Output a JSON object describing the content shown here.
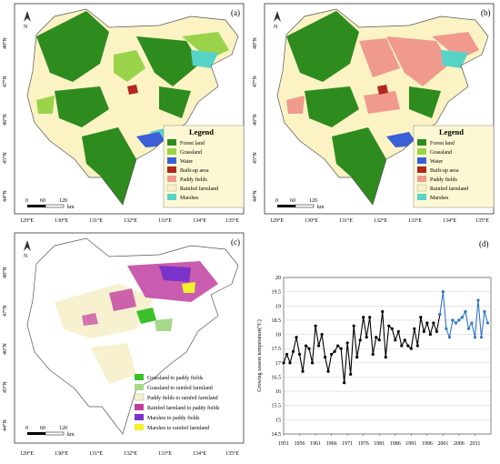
{
  "panels": {
    "a": {
      "label": "(a)"
    },
    "b": {
      "label": "(b)"
    },
    "c": {
      "label": "(c)"
    },
    "d": {
      "label": "(d)"
    }
  },
  "legend": {
    "title": "Legend",
    "items": [
      {
        "label": "Forest land",
        "color": "#2e8b1e"
      },
      {
        "label": "Grassland",
        "color": "#9ad34a"
      },
      {
        "label": "Water",
        "color": "#3b5fd6"
      },
      {
        "label": "Built-up area",
        "color": "#b3261e"
      },
      {
        "label": "Paddy fields",
        "color": "#f09a8e"
      },
      {
        "label": "Rainfed farmland",
        "color": "#fbf3c4"
      },
      {
        "label": "Marshes",
        "color": "#58d3c8"
      }
    ]
  },
  "change_legend": {
    "items": [
      {
        "label": "Grassland to paddy fields",
        "color": "#3bbf2a"
      },
      {
        "label": "Grassland to rainfed farmland",
        "color": "#a6d88a"
      },
      {
        "label": "Paddy fields to rainfed farmland",
        "color": "#f7f1cf"
      },
      {
        "label": "Rainfed farmland to paddy fields",
        "color": "#c03fa0"
      },
      {
        "label": "Marshes to paddy fields",
        "color": "#7a33c9"
      },
      {
        "label": "Marshes to rainfed farmland",
        "color": "#f1f02a"
      }
    ]
  },
  "scalebar": {
    "ticks": [
      "0",
      "60",
      "120"
    ],
    "unit": "km"
  },
  "axes": {
    "lon_ticks": [
      "129°E",
      "130°E",
      "131°E",
      "132°E",
      "133°E",
      "134°E",
      "135°E"
    ],
    "lat_ticks": [
      "48°N",
      "47°N",
      "46°N",
      "45°N",
      "44°N"
    ]
  },
  "chart_data": {
    "type": "line",
    "ylabel": "Growing season temperature(°C)",
    "ylim": [
      14.5,
      20
    ],
    "yticks": [
      "14.5",
      "15",
      "15.5",
      "16",
      "16.5",
      "17",
      "17.5",
      "18",
      "18.5",
      "19",
      "19.5",
      "20"
    ],
    "xticks": [
      "1951",
      "1956",
      "1961",
      "1966",
      "1971",
      "1976",
      "1981",
      "1986",
      "1991",
      "1996",
      "2001",
      "2006",
      "2011"
    ],
    "series": [
      {
        "color": "#000000",
        "x": [
          1951,
          1952,
          1953,
          1954,
          1955,
          1956,
          1957,
          1958,
          1959,
          1960,
          1961,
          1962,
          1963,
          1964,
          1965,
          1966,
          1967,
          1968,
          1969,
          1970,
          1971,
          1972,
          1973,
          1974,
          1975,
          1976,
          1977,
          1978,
          1979,
          1980,
          1981,
          1982,
          1983,
          1984,
          1985,
          1986,
          1987,
          1988,
          1989,
          1990,
          1991,
          1992,
          1993,
          1994,
          1995,
          1996,
          1997,
          1998,
          1999,
          2000
        ],
        "values": [
          17.0,
          17.3,
          17.0,
          17.4,
          17.9,
          17.3,
          16.7,
          17.6,
          17.5,
          17.0,
          18.3,
          17.6,
          18.0,
          17.2,
          16.7,
          17.3,
          17.4,
          17.6,
          17.5,
          16.3,
          17.7,
          16.6,
          18.3,
          17.2,
          17.8,
          18.6,
          17.9,
          18.6,
          17.3,
          17.9,
          17.8,
          18.8,
          17.2,
          18.3,
          18.2,
          17.8,
          18.1,
          17.6,
          17.8,
          17.6,
          17.5,
          18.2,
          17.6,
          18.6,
          18.1,
          18.4,
          18.0,
          18.4,
          18.1,
          18.7
        ]
      },
      {
        "color": "#2f76c8",
        "x": [
          2000,
          2001,
          2002,
          2003,
          2004,
          2005,
          2006,
          2007,
          2008,
          2009,
          2010,
          2011,
          2012,
          2013,
          2014,
          2015
        ],
        "values": [
          18.7,
          19.5,
          18.2,
          17.9,
          18.5,
          18.4,
          18.5,
          18.6,
          18.8,
          18.2,
          18.4,
          17.9,
          19.2,
          17.9,
          18.8,
          18.4
        ]
      }
    ]
  }
}
